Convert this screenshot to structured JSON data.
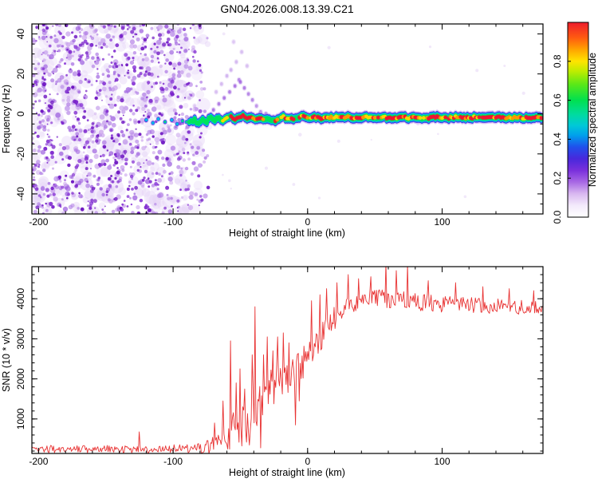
{
  "title": "GN04.2026.008.13.39.C21",
  "colors": {
    "halo": "#c7a4ef",
    "blue": "#3a30e2",
    "cyan": "#00bfe8",
    "green": "#00e35c",
    "yellow": "#ffd800",
    "orange": "#ff9800",
    "red": "#f01430",
    "snr_line": "#e83232",
    "noise_wash": "#e3d0f6",
    "noise_mid": [
      "#c9a2ec",
      "#b382e6",
      "#a166e0"
    ],
    "noise_dark": [
      "#8a3ad6",
      "#7a22cc",
      "#6a10c0"
    ],
    "frame": "#000000"
  },
  "chart_data": [
    {
      "type": "heatmap",
      "panel": "top",
      "xlabel": "Height of straight line (km)",
      "ylabel": "Frequency (Hz)",
      "xlim": [
        -205,
        175
      ],
      "ylim": [
        -50,
        45
      ],
      "xticks": [
        -200,
        -100,
        0,
        100
      ],
      "yticks": [
        -40,
        -20,
        0,
        20,
        40
      ],
      "x_minor_step": 20,
      "y_minor_step": 5,
      "colorbar": {
        "label": "Normalized spectral amplitude",
        "lim": [
          0,
          1
        ],
        "tick_values": [
          0,
          0.2,
          0.4,
          0.6,
          0.8
        ],
        "tick_labels": [
          "0.0",
          "0.2",
          "0.4",
          "0.6",
          "0.8"
        ],
        "stops": [
          [
            0,
            "#ffffff"
          ],
          [
            0.06,
            "#f3eafb"
          ],
          [
            0.12,
            "#d9b8f0"
          ],
          [
            0.18,
            "#a868e4"
          ],
          [
            0.24,
            "#7a30dc"
          ],
          [
            0.3,
            "#4828dc"
          ],
          [
            0.36,
            "#2050ec"
          ],
          [
            0.42,
            "#00a0ec"
          ],
          [
            0.47,
            "#00c8d8"
          ],
          [
            0.53,
            "#00dc9c"
          ],
          [
            0.6,
            "#00e050"
          ],
          [
            0.68,
            "#58e818"
          ],
          [
            0.75,
            "#c0ec00"
          ],
          [
            0.8,
            "#ffe400"
          ],
          [
            0.86,
            "#ffa400"
          ],
          [
            0.92,
            "#ff5c10"
          ],
          [
            1,
            "#ee1c2c"
          ]
        ]
      },
      "noise": {
        "h_range": [
          -205,
          -70
        ],
        "fade_start": -92,
        "fade_end": -70,
        "f_range": [
          -50,
          45
        ],
        "wash_count": 420,
        "mid_count": 720,
        "dark_count": 500,
        "sparse_right_count": 18
      },
      "lead_dots": [
        [
          -120,
          -3,
          0.45
        ],
        [
          -115,
          -4.5,
          0.5
        ],
        [
          -111,
          -2.5,
          0.38
        ],
        [
          -106,
          -4,
          0.55
        ],
        [
          -101,
          -3,
          0.42
        ],
        [
          -97,
          -5,
          0.5
        ],
        [
          -93,
          -3.5,
          0.6
        ],
        [
          -90,
          -4,
          0.65
        ]
      ],
      "track": [
        [
          -88,
          -4,
          0.62
        ],
        [
          -84,
          -3,
          0.72
        ],
        [
          -81,
          -5,
          0.78
        ],
        [
          -78,
          -2.5,
          0.7
        ],
        [
          -75,
          -4,
          0.85
        ],
        [
          -72,
          -1.5,
          0.8
        ],
        [
          -69,
          -3,
          0.9
        ],
        [
          -66,
          -2,
          0.8
        ],
        [
          -63,
          -3.5,
          0.92
        ],
        [
          -60,
          -2,
          0.88
        ],
        [
          -57,
          -1,
          0.95
        ],
        [
          -54,
          -2.5,
          0.9
        ],
        [
          -51,
          -1.5,
          1.0
        ],
        [
          -48,
          -1,
          0.97
        ],
        [
          -45,
          -2,
          1.0
        ],
        [
          -42,
          -1.5,
          0.95
        ],
        [
          -39,
          -3,
          0.9
        ],
        [
          -36,
          -2,
          1.0
        ],
        [
          -33,
          -2.5,
          0.92
        ],
        [
          -30,
          -2,
          0.85
        ],
        [
          -27,
          -3,
          0.8
        ],
        [
          -24,
          -3.5,
          0.95
        ],
        [
          -21,
          -2.5,
          0.88
        ],
        [
          -18,
          -1.5,
          0.9
        ],
        [
          -15,
          -2,
          0.97
        ],
        [
          -12,
          -2.5,
          1.0
        ],
        [
          -9,
          -2,
          0.9
        ],
        [
          -6,
          -1.5,
          0.95
        ],
        [
          -3,
          -1,
          0.92
        ],
        [
          0,
          -2,
          0.9
        ],
        [
          5,
          -1.5,
          0.95
        ],
        [
          10,
          -2,
          1.0
        ],
        [
          15,
          -2,
          0.92
        ],
        [
          20,
          -1.5,
          0.88
        ],
        [
          25,
          -2,
          0.95
        ],
        [
          30,
          -1.5,
          0.9
        ],
        [
          35,
          -2,
          0.97
        ],
        [
          40,
          -2,
          1.0
        ],
        [
          45,
          -1.5,
          0.93
        ],
        [
          50,
          -2,
          0.9
        ],
        [
          55,
          -1.5,
          0.95
        ],
        [
          60,
          -2,
          1.0
        ],
        [
          65,
          -2,
          0.95
        ],
        [
          70,
          -1.5,
          0.92
        ],
        [
          75,
          -2,
          0.97
        ],
        [
          80,
          -1.5,
          0.9
        ],
        [
          85,
          -2,
          0.88
        ],
        [
          90,
          -2,
          0.95
        ],
        [
          95,
          -1.5,
          1.0
        ],
        [
          100,
          -2,
          0.95
        ],
        [
          105,
          -2,
          0.9
        ],
        [
          110,
          -1.5,
          0.95
        ],
        [
          115,
          -2,
          1.0
        ],
        [
          120,
          -2,
          0.95
        ],
        [
          125,
          -1.5,
          0.9
        ],
        [
          130,
          -2,
          0.95
        ],
        [
          135,
          -2,
          1.0
        ],
        [
          140,
          -1.5,
          0.95
        ],
        [
          145,
          -2,
          0.92
        ],
        [
          150,
          -2,
          0.97
        ],
        [
          155,
          -1.5,
          1.0
        ],
        [
          160,
          -2,
          0.95
        ],
        [
          165,
          -2,
          0.98
        ],
        [
          170,
          -1.5,
          0.95
        ],
        [
          175,
          -2,
          1.0
        ]
      ],
      "streak": [
        [
          -78,
          -4,
          0.3
        ],
        [
          -74,
          -1,
          0.3
        ],
        [
          -70,
          2,
          0.3
        ],
        [
          -66,
          5,
          0.28
        ],
        [
          -62,
          8,
          0.3
        ],
        [
          -58,
          11,
          0.28
        ],
        [
          -54,
          14,
          0.3
        ],
        [
          -51,
          17,
          0.26
        ],
        [
          -50,
          16,
          0.3
        ],
        [
          -47,
          13,
          0.28
        ],
        [
          -44,
          10,
          0.25
        ],
        [
          -41,
          7,
          0.25
        ],
        [
          -38,
          4,
          0.22
        ],
        [
          -35,
          1,
          0.25
        ],
        [
          -31,
          0,
          0.3
        ],
        [
          -57,
          22,
          0.15
        ],
        [
          -53,
          26,
          0.13
        ],
        [
          -49,
          31,
          0.12
        ],
        [
          -55,
          36,
          0.1
        ],
        [
          -45,
          24,
          0.12
        ],
        [
          -60,
          19,
          0.14
        ],
        [
          -64,
          15,
          0.13
        ],
        [
          -68,
          11,
          0.12
        ],
        [
          -84,
          4,
          0.1
        ],
        [
          -88,
          8,
          0.1
        ]
      ]
    },
    {
      "type": "line",
      "panel": "bottom",
      "xlabel": "Height of straight line (km)",
      "ylabel": "SNR (10 * v/v)",
      "xlim": [
        -205,
        175
      ],
      "ylim": [
        140,
        4800
      ],
      "xticks": [
        -200,
        -100,
        0,
        100
      ],
      "yticks": [
        1000,
        2000,
        3000,
        4000
      ],
      "x_minor_step": 20,
      "y_minor_step": 200,
      "control_points": [
        [
          -205,
          250,
          90
        ],
        [
          -150,
          250,
          95
        ],
        [
          -110,
          255,
          100
        ],
        [
          -90,
          260,
          105
        ],
        [
          -80,
          270,
          120
        ],
        [
          -74,
          300,
          170
        ],
        [
          -70,
          340,
          230
        ],
        [
          -66,
          420,
          300
        ],
        [
          -62,
          520,
          370
        ],
        [
          -58,
          640,
          430
        ],
        [
          -54,
          730,
          480
        ],
        [
          -50,
          800,
          520
        ],
        [
          -46,
          880,
          560
        ],
        [
          -42,
          1000,
          600
        ],
        [
          -38,
          1250,
          620
        ],
        [
          -34,
          1450,
          570
        ],
        [
          -30,
          1600,
          560
        ],
        [
          -26,
          1750,
          550
        ],
        [
          -22,
          1900,
          530
        ],
        [
          -18,
          2020,
          510
        ],
        [
          -14,
          2120,
          490
        ],
        [
          -10,
          2200,
          460
        ],
        [
          -6,
          2330,
          430
        ],
        [
          -2,
          2480,
          410
        ],
        [
          2,
          2650,
          390
        ],
        [
          6,
          2840,
          370
        ],
        [
          10,
          3040,
          350
        ],
        [
          14,
          3240,
          330
        ],
        [
          18,
          3440,
          310
        ],
        [
          22,
          3620,
          290
        ],
        [
          26,
          3760,
          270
        ],
        [
          30,
          3860,
          255
        ],
        [
          36,
          3930,
          245
        ],
        [
          44,
          3970,
          240
        ],
        [
          52,
          3990,
          240
        ],
        [
          60,
          3970,
          235
        ],
        [
          70,
          3950,
          230
        ],
        [
          80,
          3930,
          225
        ],
        [
          90,
          3890,
          220
        ],
        [
          100,
          3860,
          215
        ],
        [
          110,
          3870,
          215
        ],
        [
          120,
          3855,
          205
        ],
        [
          130,
          3840,
          200
        ],
        [
          140,
          3820,
          195
        ],
        [
          150,
          3805,
          190
        ],
        [
          160,
          3795,
          190
        ],
        [
          170,
          3785,
          185
        ],
        [
          175,
          3780,
          185
        ]
      ],
      "spikes": [
        [
          -125,
          680
        ],
        [
          -69,
          900
        ],
        [
          -63,
          1450
        ],
        [
          -57,
          2950
        ],
        [
          -53,
          1900
        ],
        [
          -51,
          420
        ],
        [
          -50,
          2250
        ],
        [
          -47,
          1750
        ],
        [
          -43,
          350
        ],
        [
          -41,
          2600
        ],
        [
          -39,
          3800
        ],
        [
          -35,
          280
        ],
        [
          -33,
          2600
        ],
        [
          -30,
          3050
        ],
        [
          -26,
          2700
        ],
        [
          -22,
          3050
        ],
        [
          -18,
          3150
        ],
        [
          -14,
          2900
        ],
        [
          -9,
          850
        ],
        [
          -6,
          1450
        ],
        [
          3,
          3950
        ],
        [
          9,
          4100
        ],
        [
          14,
          4250
        ],
        [
          22,
          4400
        ],
        [
          30,
          4600
        ],
        [
          38,
          4500
        ],
        [
          47,
          4550
        ],
        [
          58,
          4900
        ],
        [
          66,
          4700
        ],
        [
          74,
          4850
        ],
        [
          90,
          4450
        ],
        [
          110,
          4400
        ],
        [
          130,
          4300
        ],
        [
          150,
          4250
        ],
        [
          168,
          4200
        ]
      ]
    }
  ]
}
